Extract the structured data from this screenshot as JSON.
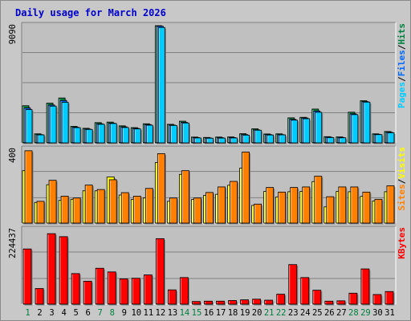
{
  "title": "Daily usage for March 2026",
  "colors": {
    "pages": "#00ccff",
    "files": "#0066ff",
    "hits": "#008040",
    "sites": "#ff8000",
    "visits": "#ffff00",
    "kbytes": "#ff0000",
    "weekday": "#0000aa",
    "weekend": "#008040",
    "plot_bg": "#c0c0c0",
    "gridline": "#808080"
  },
  "chart_data": [
    {
      "type": "bar",
      "ymax_label": "9090",
      "ymax": 9090,
      "legend": [
        {
          "text": "Pages",
          "color": "#00ccff"
        },
        {
          "text": "Files",
          "color": "#0066ff"
        },
        {
          "text": "Hits",
          "color": "#008040"
        }
      ],
      "x": [
        "1",
        "2",
        "3",
        "4",
        "5",
        "6",
        "7",
        "8",
        "9",
        "10",
        "11",
        "12",
        "13",
        "14",
        "15",
        "16",
        "17",
        "18",
        "19",
        "20",
        "21",
        "22",
        "23",
        "24",
        "25",
        "26",
        "27",
        "28",
        "29",
        "30",
        "31"
      ],
      "series": [
        {
          "name": "Hits",
          "values": [
            2880,
            700,
            3080,
            3480,
            1280,
            1130,
            1570,
            1610,
            1320,
            1180,
            1480,
            9090,
            1440,
            1680,
            450,
            420,
            450,
            460,
            710,
            1090,
            690,
            700,
            1940,
            1980,
            2620,
            480,
            460,
            2380,
            3270,
            700,
            880
          ]
        },
        {
          "name": "Files",
          "values": [
            2700,
            640,
            2930,
            3280,
            1210,
            1070,
            1480,
            1530,
            1240,
            1120,
            1420,
            9050,
            1380,
            1590,
            410,
            380,
            400,
            410,
            640,
            1010,
            640,
            640,
            1820,
            1930,
            2460,
            440,
            420,
            2250,
            3200,
            660,
            820
          ]
        },
        {
          "name": "Pages",
          "values": [
            2580,
            620,
            2850,
            3150,
            1180,
            1040,
            1440,
            1500,
            1190,
            1080,
            1370,
            8950,
            1350,
            1540,
            380,
            360,
            370,
            380,
            600,
            980,
            610,
            620,
            1760,
            1870,
            2370,
            410,
            390,
            2190,
            3160,
            640,
            780
          ]
        }
      ]
    },
    {
      "type": "bar",
      "ymax_label": "400",
      "ymax": 400,
      "legend": [
        {
          "text": "Sites",
          "color": "#ff8000"
        },
        {
          "text": "Visits",
          "color": "#ffff00"
        }
      ],
      "x": [
        "1",
        "2",
        "3",
        "4",
        "5",
        "6",
        "7",
        "8",
        "9",
        "10",
        "11",
        "12",
        "13",
        "14",
        "15",
        "16",
        "17",
        "18",
        "19",
        "20",
        "21",
        "22",
        "23",
        "24",
        "25",
        "26",
        "27",
        "28",
        "29",
        "30",
        "31"
      ],
      "series": [
        {
          "name": "Visits",
          "values": [
            284,
            112,
            208,
            123,
            129,
            175,
            175,
            250,
            152,
            128,
            136,
            328,
            118,
            264,
            128,
            150,
            156,
            205,
            298,
            96,
            172,
            142,
            170,
            172,
            225,
            88,
            172,
            170,
            145,
            120,
            170
          ]
        },
        {
          "name": "Sites",
          "values": [
            392,
            118,
            232,
            146,
            136,
            206,
            182,
            235,
            165,
            146,
            188,
            376,
            136,
            284,
            136,
            166,
            196,
            226,
            385,
            103,
            193,
            168,
            193,
            196,
            254,
            143,
            196,
            196,
            168,
            129,
            202
          ]
        }
      ]
    },
    {
      "type": "bar",
      "ymax_label": "224437",
      "ymax": 224437,
      "legend": [
        {
          "text": "KBytes",
          "color": "#ff0000"
        }
      ],
      "x": [
        "1",
        "2",
        "3",
        "4",
        "5",
        "6",
        "7",
        "8",
        "9",
        "10",
        "11",
        "12",
        "13",
        "14",
        "15",
        "16",
        "17",
        "18",
        "19",
        "20",
        "21",
        "22",
        "23",
        "24",
        "25",
        "26",
        "27",
        "28",
        "29",
        "30",
        "31"
      ],
      "series": [
        {
          "name": "KBytes",
          "values": [
            166000,
            47000,
            212000,
            203000,
            92000,
            69000,
            108000,
            97000,
            76000,
            78000,
            88000,
            197000,
            43000,
            80000,
            8000,
            9000,
            9000,
            11000,
            13000,
            15000,
            12000,
            30000,
            119000,
            80000,
            42000,
            9000,
            10000,
            33000,
            106000,
            29000,
            38000
          ]
        }
      ]
    }
  ]
}
